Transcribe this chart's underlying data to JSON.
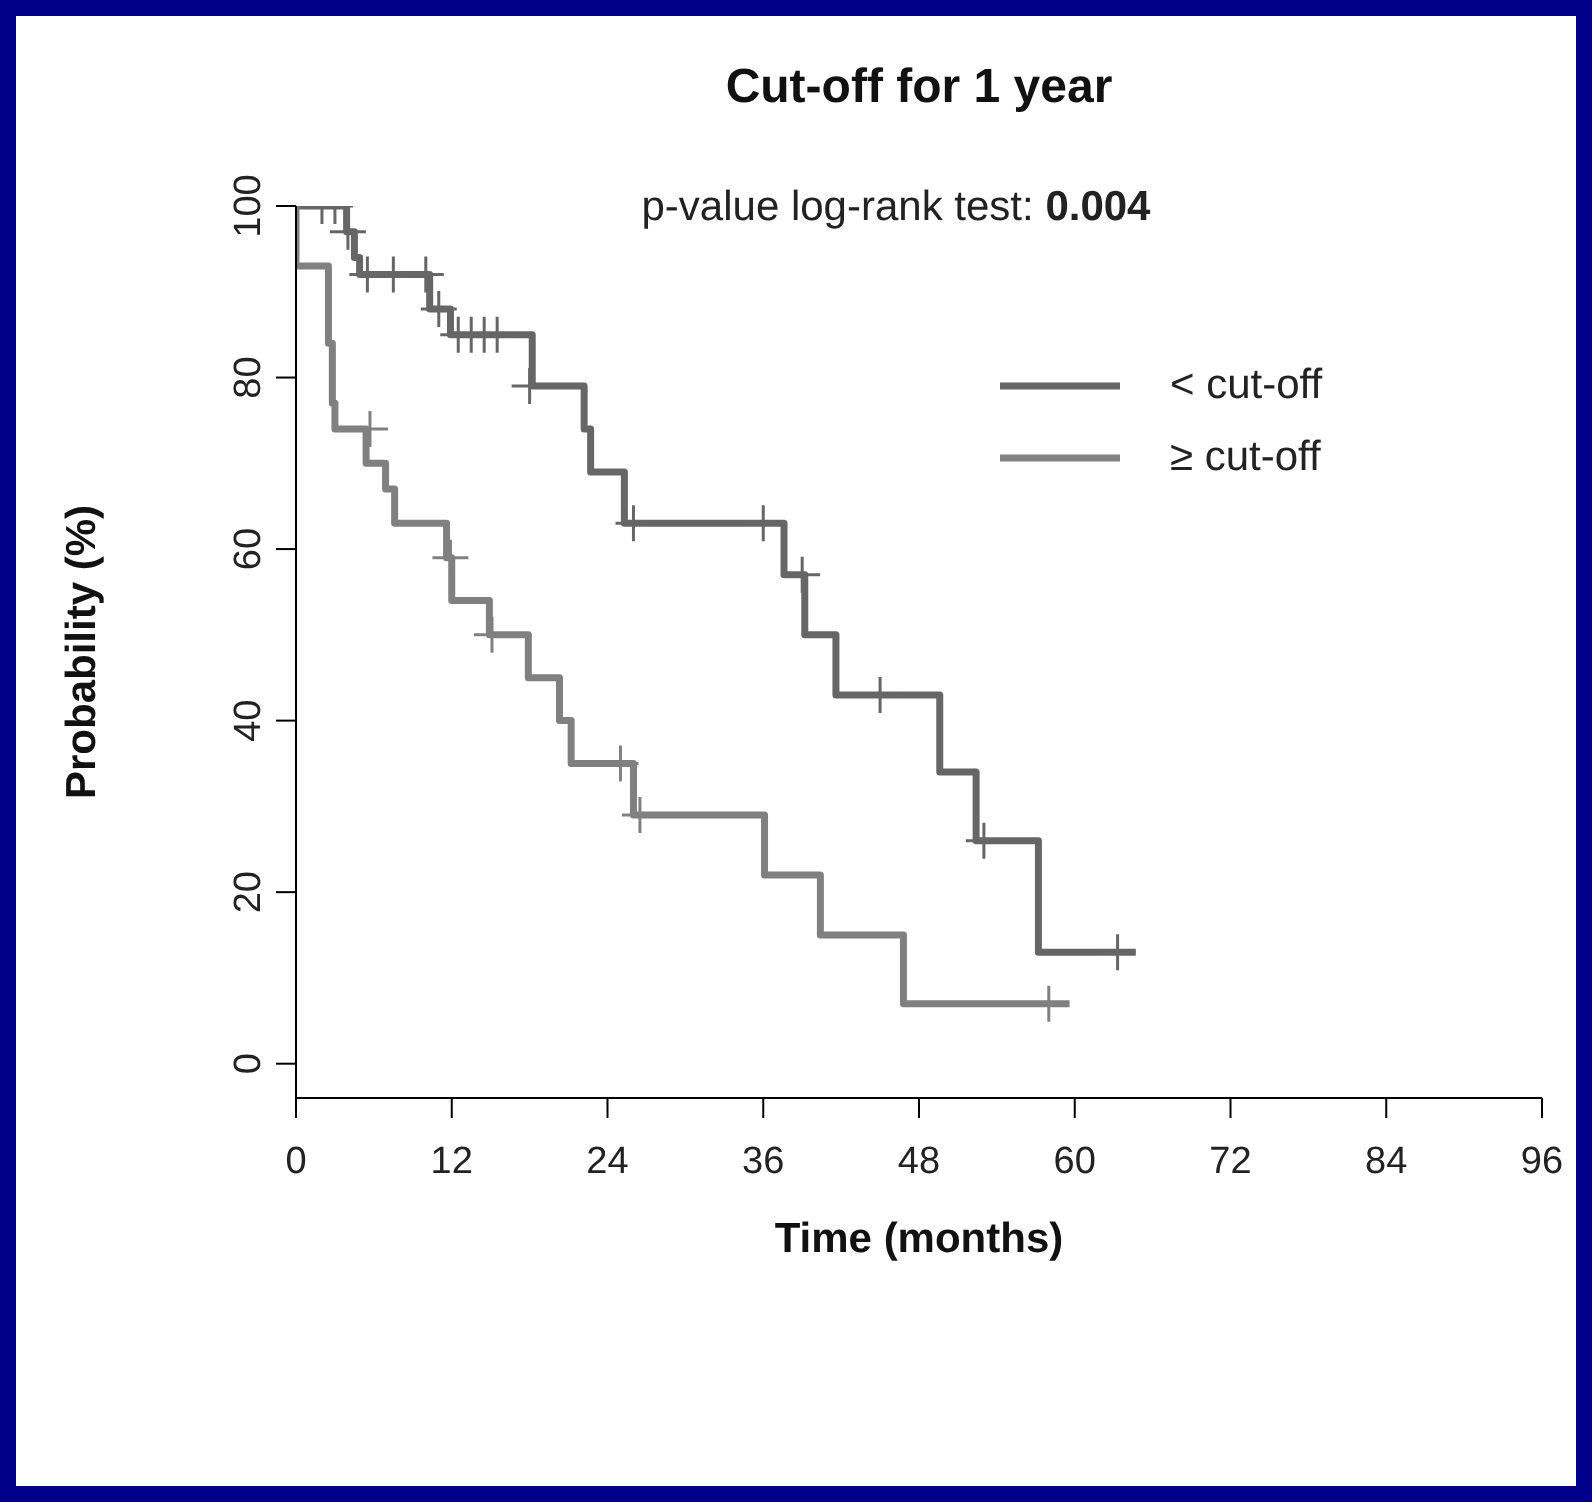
{
  "chart_data": {
    "type": "step",
    "title": "Cut-off for 1 year",
    "xlabel": "Time (months)",
    "ylabel": "Probability (%)",
    "annotations": [
      "p-value log-rank test: 0.004"
    ],
    "xlim": [
      0,
      96
    ],
    "xticks": [
      0,
      12,
      24,
      36,
      48,
      60,
      72,
      84,
      96
    ],
    "ylim": [
      -4,
      100
    ],
    "yticks": [
      0,
      20,
      40,
      60,
      80,
      100
    ],
    "grid": false,
    "legend": "top right",
    "series": [
      {
        "name": "< cut-off",
        "color": "#666666",
        "x": [
          0,
          3.9,
          4.5,
          4.9,
          10.3,
          11.9,
          18.2,
          22.2,
          22.7,
          25.3,
          37.6,
          39.2,
          41.6,
          49.6,
          52.4,
          57.2,
          64.7
        ],
        "values": [
          100,
          97,
          94,
          92,
          88,
          85,
          79,
          74,
          69,
          63,
          57,
          50,
          43,
          34,
          26,
          13,
          13
        ]
      },
      {
        "name": "≥ cut-off",
        "color": "#808080",
        "x": [
          0,
          0,
          2.5,
          2.8,
          3,
          5.4,
          6.9,
          7.6,
          11.6,
          12,
          14.9,
          17.9,
          20.3,
          21.2,
          26,
          36.1,
          40.4,
          46.8,
          59.6
        ],
        "values": [
          100,
          93,
          84,
          77,
          74,
          70,
          67,
          63,
          59,
          54,
          50,
          45,
          40,
          35,
          29,
          22,
          15,
          7,
          7
        ]
      },
      {
        "type": "scatter",
        "marker": "cross",
        "color": "#666666",
        "x": [
          2,
          3,
          4,
          5.5,
          7.5,
          10,
          11,
          12.5,
          13.5,
          14.5,
          15.5,
          18,
          26,
          36,
          39,
          45,
          53,
          63.3
        ],
        "values": [
          100,
          100,
          97,
          92,
          92,
          92,
          88,
          85,
          85,
          85,
          85,
          79,
          63,
          63,
          57,
          43,
          26,
          13
        ]
      },
      {
        "type": "scatter",
        "marker": "cross",
        "color": "#808080",
        "x": [
          5.7,
          11.9,
          15.1,
          25,
          26.5,
          58
        ],
        "values": [
          74,
          59,
          50,
          35,
          29,
          7
        ]
      }
    ]
  }
}
